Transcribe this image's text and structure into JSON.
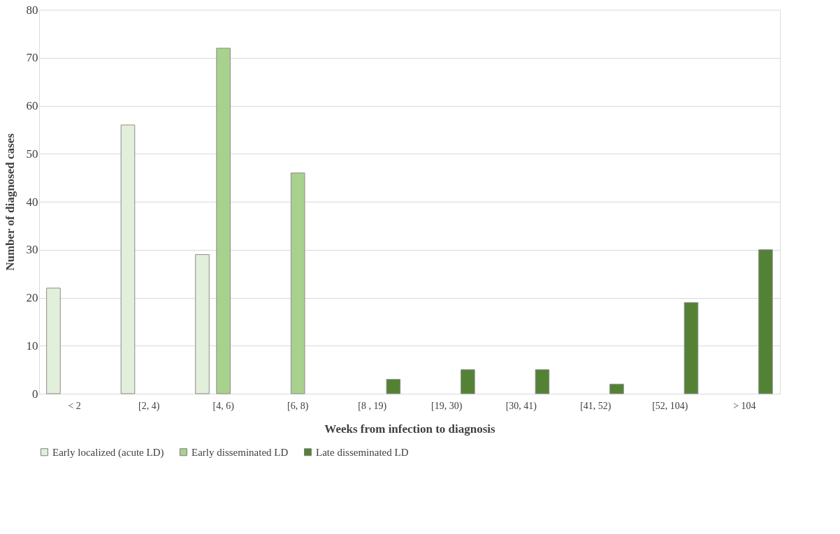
{
  "chart_data": {
    "type": "bar",
    "xlabel": "Weeks from infection to diagnosis",
    "ylabel": "Number of diagnosed cases",
    "categories": [
      "< 2",
      "[2, 4)",
      "[4, 6)",
      "[6, 8)",
      "[8 , 19)",
      "[19, 30)",
      "[30, 41)",
      "[41, 52)",
      "[52, 104)",
      "> 104"
    ],
    "series": [
      {
        "name": "Early localized (acute LD)",
        "color": "#e2efda",
        "values": [
          22,
          56,
          29,
          null,
          null,
          null,
          null,
          null,
          null,
          null
        ]
      },
      {
        "name": "Early disseminated LD",
        "color": "#a9d18e",
        "values": [
          null,
          null,
          72,
          46,
          null,
          null,
          null,
          null,
          null,
          null
        ]
      },
      {
        "name": "Late disseminated LD",
        "color": "#548235",
        "values": [
          null,
          null,
          null,
          null,
          3,
          5,
          5,
          2,
          19,
          30
        ]
      }
    ],
    "ylim": [
      0,
      80
    ],
    "yticks": [
      0,
      10,
      20,
      30,
      40,
      50,
      60,
      70,
      80
    ],
    "grid": "y",
    "legend": "bottom"
  }
}
